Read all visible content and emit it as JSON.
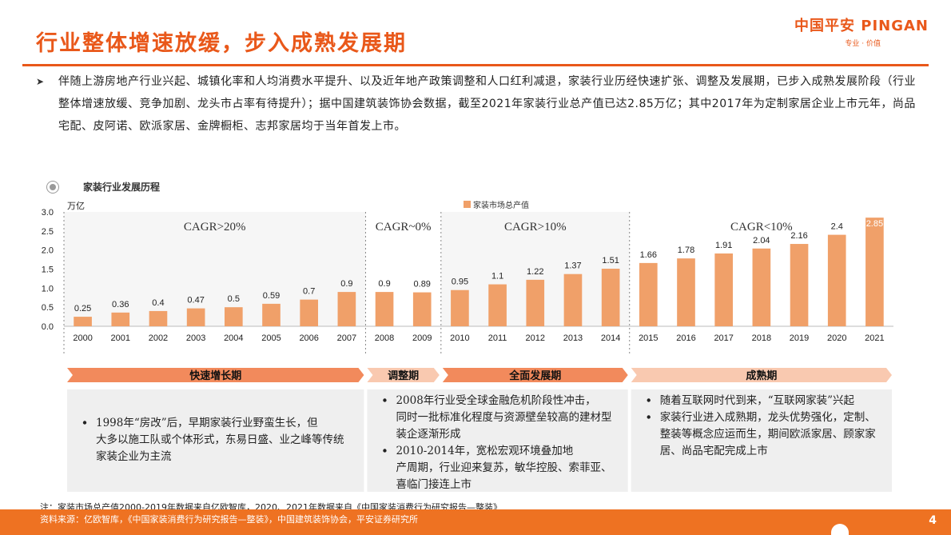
{
  "header": {
    "title": "行业整体增速放缓，步入成熟发展期",
    "logo_text": "中国平安 PINGAN",
    "logo_tagline": "专业 · 价值"
  },
  "bullet": {
    "text": "伴随上游房地产行业兴起、城镇化率和人均消费水平提升、以及近年地产政策调整和人口红利减退，家装行业历经快速扩张、调整及发展期，已步入成熟发展阶段（行业整体增速放缓、竞争加剧、龙头市占率有待提升）；据中国建筑装饰协会数据，截至2021年家装行业总产值已达2.85万亿；其中2017年为定制家居企业上市元年，尚品宅配、皮阿诺、欧派家居、金牌橱柜、志邦家居均于当年首发上市。"
  },
  "chart_title": "家装行业发展历程",
  "chart_data": {
    "type": "bar",
    "ylabel": "万亿",
    "ylim": [
      0,
      3.0
    ],
    "yticks": [
      "0.0",
      "0.5",
      "1.0",
      "1.5",
      "2.0",
      "2.5",
      "3.0"
    ],
    "legend": "家装市场总产值",
    "categories": [
      "2000",
      "2001",
      "2002",
      "2003",
      "2004",
      "2005",
      "2006",
      "2007",
      "2008",
      "2009",
      "2010",
      "2011",
      "2012",
      "2013",
      "2014",
      "2015",
      "2016",
      "2017",
      "2018",
      "2019",
      "2020",
      "2021"
    ],
    "series": [
      {
        "name": "家装市场总产值",
        "values": [
          0.25,
          0.36,
          0.4,
          0.47,
          0.5,
          0.59,
          0.7,
          0.9,
          0.9,
          0.89,
          0.95,
          1.1,
          1.22,
          1.37,
          1.51,
          1.66,
          1.78,
          1.91,
          2.04,
          2.16,
          2.4,
          2.85
        ]
      }
    ],
    "value_labels": [
      "0.25",
      "0.36",
      "0.4",
      "0.47",
      "0.5",
      "0.59",
      "0.7",
      "0.9",
      "0.9",
      "0.89",
      "0.95",
      "1.1",
      "1.22",
      "1.37",
      "1.51",
      "1.66",
      "1.78",
      "1.91",
      "2.04",
      "2.16",
      "2.4",
      "2.85"
    ],
    "phases": [
      {
        "label": "快速增长期",
        "cagr": "CAGR>20%",
        "start": 0,
        "end": 7,
        "shaded": true,
        "notes": [
          "1998年“房改”后，早期家装行业野蛮生长，但大多以施工队或个体形式，东易日盛、业之峰等传统家装企业为主流"
        ]
      },
      {
        "label": "调整期",
        "cagr": "CAGR~0%",
        "start": 8,
        "end": 9,
        "shaded": false,
        "notes": [
          "2008年行业受全球金融危机阶段性冲击，同时一批标准化程度与资源壁垒较高的建材型装企逐渐形成",
          "2010-2014年，宽松宏观环境叠加地产周期，行业迎来复苏，敏华控股、索菲亚、喜临门接连上市"
        ]
      },
      {
        "label": "全面发展期",
        "cagr": "CAGR>10%",
        "start": 10,
        "end": 14,
        "shaded": true,
        "notes": []
      },
      {
        "label": "成熟期",
        "cagr": "CAGR<10%",
        "start": 15,
        "end": 21,
        "shaded": false,
        "notes": [
          "随着互联网时代到来，“互联网家装”兴起",
          "家装行业进入成熟期，龙头优势强化，定制、整装等概念应运而生，期间欧派家居、顾家家居、尚品宅配完成上市"
        ]
      }
    ]
  },
  "colors": {
    "accent": "#e9581a",
    "bar": "#f0a069",
    "band": "#f6f6f6",
    "arrow_dark": "#f28a5c",
    "arrow_light": "#f9c9b0",
    "note_box": "#efefef",
    "footer": "#ee7222"
  },
  "footer": {
    "note": "注：家装市场总产值2000-2019年数据来自亿欧智库，2020、2021年数据来自《中国家装消费行为研究报告—整装》",
    "source": "资料来源：亿欧智库，《中国家装消费行为研究报告—整装》，中国建筑装饰协会，平安证券研究所",
    "page": "4"
  }
}
